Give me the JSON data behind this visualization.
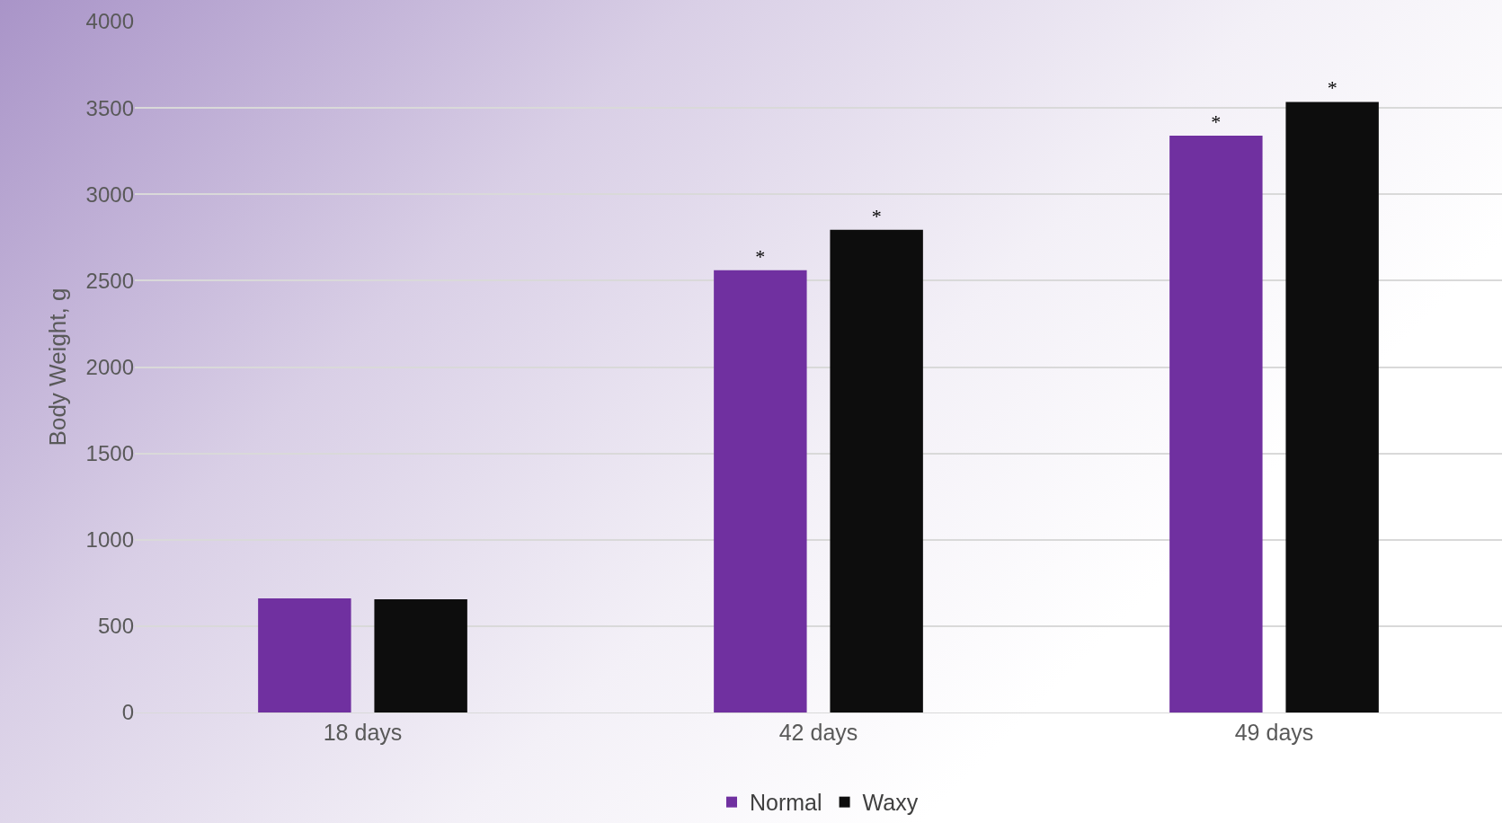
{
  "chart_data": {
    "type": "bar",
    "ylabel": "Body Weight, g",
    "categories": [
      "18 days",
      "42 days",
      "49 days"
    ],
    "series": [
      {
        "name": "Normal",
        "color": "#7030a0",
        "values": [
          660,
          2560,
          3340
        ],
        "value_labels": [
          null,
          "*",
          "*"
        ]
      },
      {
        "name": "Waxy",
        "color": "#0d0d0d",
        "values": [
          655,
          2795,
          3535
        ],
        "value_labels": [
          null,
          "*",
          "*"
        ]
      }
    ],
    "ylim": [
      0,
      4000
    ],
    "yticks": [
      0,
      500,
      1000,
      1500,
      2000,
      2500,
      3000,
      3500,
      4000
    ],
    "grid": "y",
    "legend": "bottom"
  }
}
